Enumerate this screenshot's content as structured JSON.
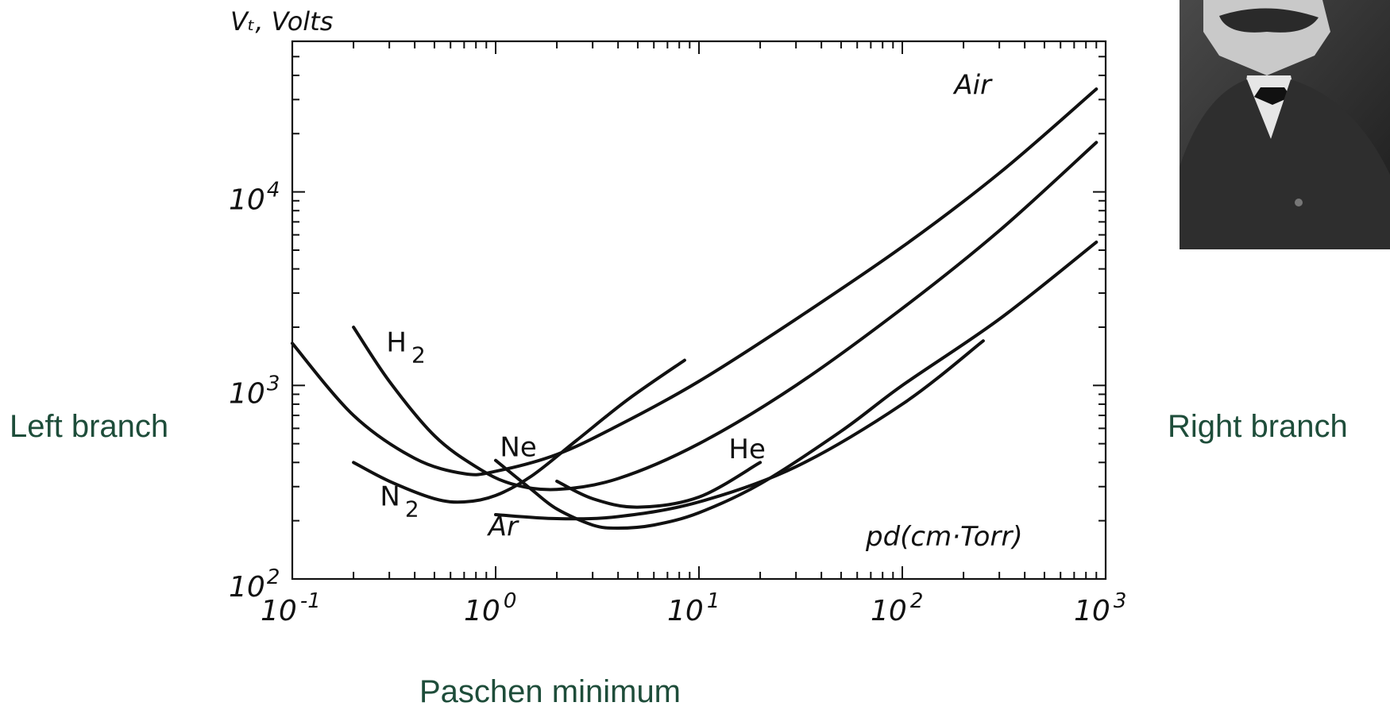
{
  "labels": {
    "left_branch": "Left branch",
    "right_branch": "Right branch",
    "paschen_minimum": "Paschen minimum"
  },
  "colors": {
    "annotation": "#1e4d3a",
    "ink": "#111111"
  },
  "photo": {
    "subject": "portrait"
  },
  "chart_data": {
    "type": "line",
    "xscale": "log",
    "yscale": "log",
    "xlim": [
      0.1,
      1000
    ],
    "ylim": [
      100,
      60000
    ],
    "x_tick_labels": [
      {
        "value": 0.1,
        "base": "10",
        "exp": "-1"
      },
      {
        "value": 1,
        "base": "10",
        "exp": "0"
      },
      {
        "value": 10,
        "base": "10",
        "exp": "1"
      },
      {
        "value": 100,
        "base": "10",
        "exp": "2"
      },
      {
        "value": 1000,
        "base": "10",
        "exp": "3"
      }
    ],
    "y_tick_labels": [
      {
        "value": 100,
        "base": "10",
        "exp": "2"
      },
      {
        "value": 1000,
        "base": "10",
        "exp": "3"
      },
      {
        "value": 10000,
        "base": "10",
        "exp": "4"
      }
    ],
    "ylabel": "Vₜ, Volts",
    "xlabel": "pd(cm·Torr)",
    "grid": false,
    "series": [
      {
        "name": "Air",
        "x": [
          0.1,
          0.2,
          0.4,
          0.7,
          1.0,
          2,
          4,
          10,
          30,
          100,
          300,
          900
        ],
        "y": [
          1650,
          700,
          420,
          350,
          360,
          440,
          620,
          1050,
          2200,
          5200,
          12500,
          34000
        ]
      },
      {
        "name": "H₂",
        "x": [
          0.2,
          0.3,
          0.5,
          0.8,
          1.2,
          2,
          4,
          10,
          30,
          100,
          300,
          900
        ],
        "y": [
          2000,
          1050,
          550,
          380,
          310,
          290,
          330,
          500,
          1000,
          2500,
          6300,
          18000
        ]
      },
      {
        "name": "N₂",
        "x": [
          0.2,
          0.3,
          0.5,
          0.7,
          1.0,
          1.5,
          2.5,
          4.5,
          8.5
        ],
        "y": [
          400,
          320,
          260,
          250,
          270,
          340,
          520,
          850,
          1350
        ]
      },
      {
        "name": "Ne",
        "x": [
          1.0,
          1.5,
          2,
          3,
          4,
          6,
          10,
          20,
          50,
          100,
          300,
          900
        ],
        "y": [
          410,
          290,
          230,
          190,
          183,
          190,
          220,
          310,
          580,
          1000,
          2200,
          5500
        ]
      },
      {
        "name": "He",
        "x": [
          2,
          3,
          5,
          10,
          20
        ],
        "y": [
          320,
          260,
          235,
          265,
          400
        ]
      },
      {
        "name": "Ar",
        "x": [
          1.0,
          2,
          4,
          10,
          30,
          100,
          250
        ],
        "y": [
          215,
          205,
          210,
          250,
          380,
          800,
          1700
        ]
      }
    ],
    "series_labels": [
      {
        "text": "Air",
        "sub": "",
        "x": 180,
        "y": 32000
      },
      {
        "text": "H",
        "sub": "2",
        "x": 0.29,
        "y": 1500
      },
      {
        "text": "Ne",
        "sub": "",
        "x": 1.05,
        "y": 430
      },
      {
        "text": "He",
        "sub": "",
        "x": 14,
        "y": 420
      },
      {
        "text": "N",
        "sub": "2",
        "x": 0.27,
        "y": 240
      },
      {
        "text": "Ar",
        "sub": "",
        "x": 0.92,
        "y": 167
      }
    ]
  }
}
